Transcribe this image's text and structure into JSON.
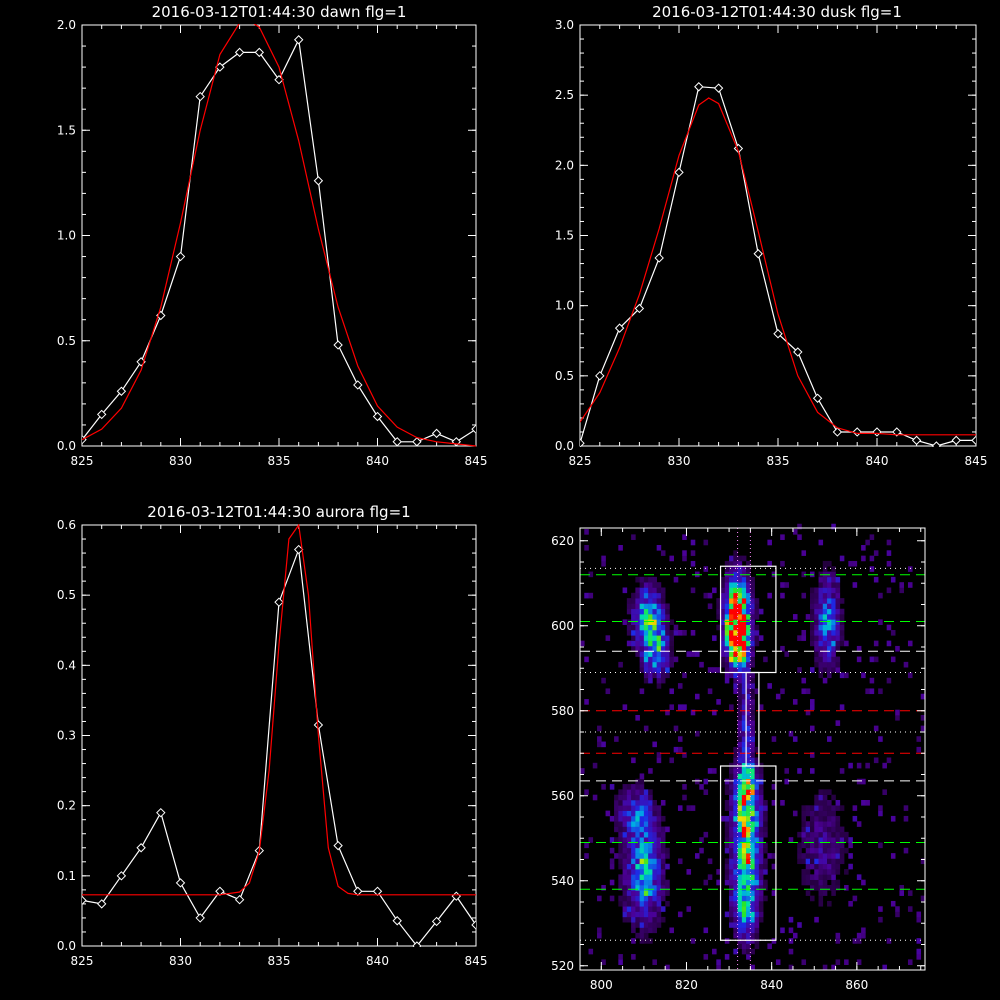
{
  "chart_data": [
    {
      "id": "dawn",
      "type": "line",
      "title": "2016-03-12T01:44:30 dawn flg=1",
      "xlim": [
        825,
        845
      ],
      "ylim": [
        0,
        2.0
      ],
      "xticks": [
        825,
        830,
        835,
        840,
        845
      ],
      "yticks": [
        0.0,
        0.5,
        1.0,
        1.5,
        2.0
      ],
      "ytick_labels": [
        "0.0",
        "0.5",
        "1.0",
        "1.5",
        "2.0"
      ],
      "series": [
        {
          "kind": "data",
          "color": "#ffffff",
          "marker": "diamond",
          "x": [
            825,
            826,
            827,
            828,
            829,
            830,
            831,
            832,
            833,
            834,
            835,
            836,
            837,
            838,
            839,
            840,
            841,
            842,
            843,
            844,
            845
          ],
          "y": [
            0.03,
            0.15,
            0.26,
            0.4,
            0.62,
            0.9,
            1.66,
            1.8,
            1.87,
            1.87,
            1.74,
            1.93,
            1.26,
            0.48,
            0.29,
            0.14,
            0.02,
            0.02,
            0.06,
            0.02,
            0.08
          ]
        },
        {
          "kind": "fit",
          "color": "#ff0000",
          "x": [
            825,
            826,
            827,
            828,
            829,
            830,
            831,
            832,
            833,
            833.5,
            834,
            835,
            836,
            837,
            838,
            839,
            840,
            841,
            842,
            843,
            844,
            845
          ],
          "y": [
            0.03,
            0.08,
            0.18,
            0.36,
            0.66,
            1.06,
            1.5,
            1.86,
            2.01,
            2.02,
            1.99,
            1.8,
            1.45,
            1.03,
            0.66,
            0.38,
            0.19,
            0.09,
            0.04,
            0.02,
            0.01,
            0.0
          ]
        }
      ]
    },
    {
      "id": "dusk",
      "type": "line",
      "title": "2016-03-12T01:44:30 dusk flg=1",
      "xlim": [
        825,
        845
      ],
      "ylim": [
        0,
        3.0
      ],
      "xticks": [
        825,
        830,
        835,
        840,
        845
      ],
      "yticks": [
        0.0,
        0.5,
        1.0,
        1.5,
        2.0,
        2.5,
        3.0
      ],
      "ytick_labels": [
        "0.0",
        "0.5",
        "1.0",
        "1.5",
        "2.0",
        "2.5",
        "3.0"
      ],
      "series": [
        {
          "kind": "data",
          "color": "#ffffff",
          "marker": "diamond",
          "x": [
            825,
            826,
            827,
            828,
            829,
            830,
            831,
            832,
            833,
            834,
            835,
            836,
            837,
            838,
            839,
            840,
            841,
            842,
            843,
            844,
            845
          ],
          "y": [
            0.02,
            0.5,
            0.84,
            0.98,
            1.34,
            1.95,
            2.56,
            2.55,
            2.12,
            1.37,
            0.8,
            0.67,
            0.34,
            0.1,
            0.1,
            0.1,
            0.1,
            0.04,
            0.0,
            0.04,
            0.04
          ]
        },
        {
          "kind": "fit",
          "color": "#ff0000",
          "x": [
            825,
            826,
            827,
            828,
            829,
            830,
            831,
            831.5,
            832,
            833,
            834,
            835,
            836,
            837,
            838,
            839,
            840,
            841,
            842,
            843,
            844,
            845
          ],
          "y": [
            0.17,
            0.38,
            0.7,
            1.08,
            1.55,
            2.07,
            2.43,
            2.48,
            2.44,
            2.1,
            1.53,
            0.94,
            0.5,
            0.24,
            0.13,
            0.09,
            0.09,
            0.08,
            0.08,
            0.08,
            0.08,
            0.08
          ]
        }
      ]
    },
    {
      "id": "aurora",
      "type": "line",
      "title": "2016-03-12T01:44:30 aurora flg=1",
      "xlim": [
        825,
        845
      ],
      "ylim": [
        0,
        0.6
      ],
      "xticks": [
        825,
        830,
        835,
        840,
        845
      ],
      "yticks": [
        0.0,
        0.1,
        0.2,
        0.3,
        0.4,
        0.5,
        0.6
      ],
      "ytick_labels": [
        "0.0",
        "0.1",
        "0.2",
        "0.3",
        "0.4",
        "0.5",
        "0.6"
      ],
      "series": [
        {
          "kind": "data",
          "color": "#ffffff",
          "marker": "diamond",
          "x": [
            825,
            826,
            827,
            828,
            829,
            830,
            831,
            832,
            833,
            834,
            835,
            836,
            837,
            838,
            839,
            840,
            841,
            842,
            843,
            844,
            845
          ],
          "y": [
            0.065,
            0.06,
            0.1,
            0.14,
            0.19,
            0.09,
            0.04,
            0.078,
            0.066,
            0.136,
            0.49,
            0.565,
            0.315,
            0.143,
            0.078,
            0.078,
            0.036,
            0.0,
            0.035,
            0.071,
            0.03
          ]
        },
        {
          "kind": "fit",
          "color": "#ff0000",
          "x": [
            825,
            832,
            833,
            833.5,
            834,
            834.5,
            835,
            835.5,
            836,
            836.5,
            837,
            837.5,
            838,
            838.5,
            839,
            845
          ],
          "y": [
            0.073,
            0.073,
            0.077,
            0.09,
            0.135,
            0.25,
            0.43,
            0.58,
            0.6,
            0.5,
            0.3,
            0.14,
            0.085,
            0.075,
            0.073,
            0.073
          ]
        }
      ]
    },
    {
      "id": "spectrogram",
      "type": "heatmap",
      "title": "",
      "xlim": [
        795,
        876
      ],
      "ylim": [
        519,
        623
      ],
      "xticks": [
        800,
        820,
        840,
        860
      ],
      "yticks": [
        520,
        540,
        560,
        580,
        600,
        620
      ],
      "blobs": [
        {
          "x": 832,
          "y": 603,
          "sx": 2.0,
          "sy": 6.0,
          "amp": 0.95
        },
        {
          "x": 832,
          "y": 596,
          "sx": 1.8,
          "sy": 4.0,
          "amp": 0.75
        },
        {
          "x": 834,
          "y": 548,
          "sx": 2.2,
          "sy": 9.0,
          "amp": 0.75
        },
        {
          "x": 834,
          "y": 561,
          "sx": 1.8,
          "sy": 5.0,
          "amp": 0.55
        },
        {
          "x": 834,
          "y": 533,
          "sx": 1.8,
          "sy": 5.0,
          "amp": 0.45
        },
        {
          "x": 811,
          "y": 602,
          "sx": 2.4,
          "sy": 5.0,
          "amp": 0.55
        },
        {
          "x": 813,
          "y": 594,
          "sx": 2.0,
          "sy": 4.0,
          "amp": 0.5
        },
        {
          "x": 810,
          "y": 542,
          "sx": 3.0,
          "sy": 8.0,
          "amp": 0.5
        },
        {
          "x": 808,
          "y": 556,
          "sx": 3.0,
          "sy": 4.0,
          "amp": 0.3
        },
        {
          "x": 853,
          "y": 601,
          "sx": 2.0,
          "sy": 7.0,
          "amp": 0.45
        },
        {
          "x": 852,
          "y": 548,
          "sx": 4.0,
          "sy": 9.0,
          "amp": 0.18
        },
        {
          "x": 834,
          "y": 578,
          "sx": 1.2,
          "sy": 9.0,
          "amp": 0.3
        }
      ],
      "regions": [
        {
          "name": "dawn-window",
          "x0": 828,
          "x1": 841,
          "y0": 589,
          "y1": 614
        },
        {
          "name": "aurora-window",
          "x0": 834,
          "x1": 837,
          "y0": 567,
          "y1": 589
        },
        {
          "name": "dusk-window",
          "x0": 828,
          "x1": 841,
          "y0": 526,
          "y1": 567
        }
      ],
      "vlines": [
        {
          "x": 832,
          "color": "#ff88ff",
          "style": "dotted"
        },
        {
          "x": 835,
          "color": "#ff88ff",
          "style": "dotted"
        }
      ],
      "hlines": [
        {
          "y": 613.5,
          "color": "#ffffff",
          "style": "dotted"
        },
        {
          "y": 612,
          "color": "#00ff00",
          "style": "dashed"
        },
        {
          "y": 601,
          "color": "#00ff00",
          "style": "dashed"
        },
        {
          "y": 594,
          "color": "#ffffff",
          "style": "dashed"
        },
        {
          "y": 589,
          "color": "#ffffff",
          "style": "dotted"
        },
        {
          "y": 580,
          "color": "#ff0000",
          "style": "dashed"
        },
        {
          "y": 575,
          "color": "#ffffff",
          "style": "dotted"
        },
        {
          "y": 570,
          "color": "#ff0000",
          "style": "dashed"
        },
        {
          "y": 563.5,
          "color": "#ffffff",
          "style": "dashed"
        },
        {
          "y": 549,
          "color": "#00ff00",
          "style": "dashed"
        },
        {
          "y": 538,
          "color": "#00ff00",
          "style": "dashed"
        },
        {
          "y": 526,
          "color": "#ffffff",
          "style": "dotted"
        }
      ]
    }
  ]
}
